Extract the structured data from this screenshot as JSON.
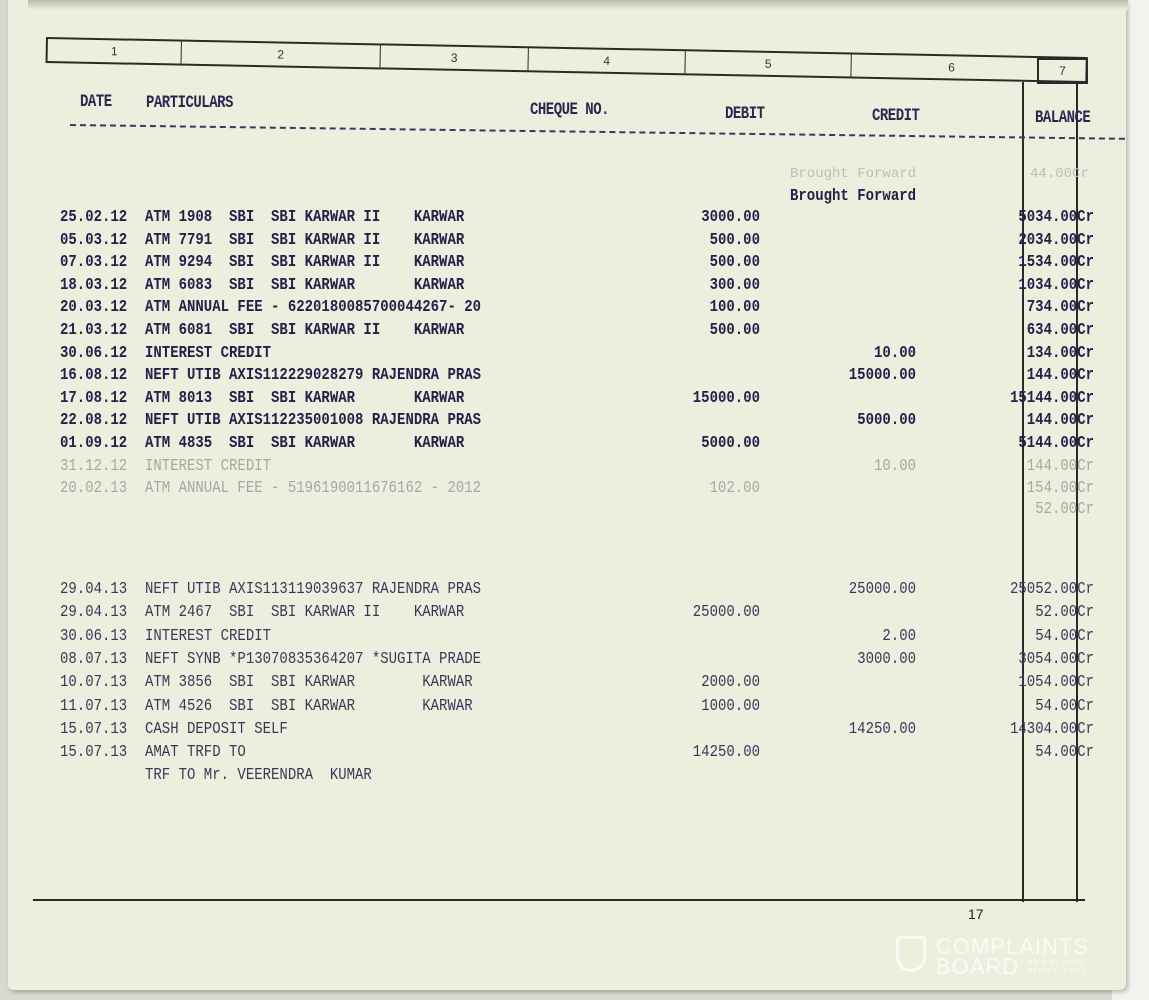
{
  "column_numbers": [
    "1",
    "2",
    "3",
    "4",
    "5",
    "6",
    "7"
  ],
  "headers": {
    "date": "DATE",
    "particulars": "PARTICULARS",
    "cheque": "CHEQUE NO.",
    "debit": "DEBIT",
    "credit": "CREDIT",
    "balance": "BALANCE"
  },
  "brought_forward": {
    "label": "Brought Forward",
    "ghost_label": "Brought Forward",
    "ghost_balance": "44.00Cr"
  },
  "rows_2012": [
    {
      "date": "25.02.12",
      "particulars": "ATM 1908  SBI  SBI KARWAR II    KARWAR",
      "debit": "3000.00",
      "credit": "",
      "balance": "5034.00Cr"
    },
    {
      "date": "05.03.12",
      "particulars": "ATM 7791  SBI  SBI KARWAR II    KARWAR",
      "debit": "500.00",
      "credit": "",
      "balance": "2034.00Cr"
    },
    {
      "date": "07.03.12",
      "particulars": "ATM 9294  SBI  SBI KARWAR II    KARWAR",
      "debit": "500.00",
      "credit": "",
      "balance": "1534.00Cr"
    },
    {
      "date": "18.03.12",
      "particulars": "ATM 6083  SBI  SBI KARWAR       KARWAR",
      "debit": "300.00",
      "credit": "",
      "balance": "1034.00Cr"
    },
    {
      "date": "20.03.12",
      "particulars": "ATM ANNUAL FEE - 6220180085700044267- 20",
      "debit": "100.00",
      "credit": "",
      "balance": "734.00Cr"
    },
    {
      "date": "21.03.12",
      "particulars": "ATM 6081  SBI  SBI KARWAR II    KARWAR",
      "debit": "500.00",
      "credit": "",
      "balance": "634.00Cr"
    },
    {
      "date": "30.06.12",
      "particulars": "INTEREST CREDIT",
      "debit": "",
      "credit": "10.00",
      "balance": "134.00Cr"
    },
    {
      "date": "16.08.12",
      "particulars": "NEFT UTIB AXIS112229028279 RAJENDRA PRAS",
      "debit": "",
      "credit": "15000.00",
      "balance": "144.00Cr"
    },
    {
      "date": "17.08.12",
      "particulars": "ATM 8013  SBI  SBI KARWAR       KARWAR",
      "debit": "15000.00",
      "credit": "",
      "balance": "15144.00Cr"
    },
    {
      "date": "22.08.12",
      "particulars": "NEFT UTIB AXIS112235001008 RAJENDRA PRAS",
      "debit": "",
      "credit": "5000.00",
      "balance": "144.00Cr"
    },
    {
      "date": "01.09.12",
      "particulars": "ATM 4835  SBI  SBI KARWAR       KARWAR",
      "debit": "5000.00",
      "credit": "",
      "balance": "5144.00Cr"
    },
    {
      "date": "31.12.12",
      "particulars": "INTEREST CREDIT",
      "debit": "",
      "credit": "10.00",
      "balance": "144.00Cr",
      "faded": true
    },
    {
      "date": "20.02.13",
      "particulars": "ATM ANNUAL FEE - 5196190011676162 - 2012",
      "debit": "102.00",
      "credit": "",
      "balance": "154.00Cr",
      "faded": true
    }
  ],
  "final_balance_2012": "52.00Cr",
  "rows_2013": [
    {
      "date": "29.04.13",
      "particulars": "NEFT UTIB AXIS113119039637 RAJENDRA PRAS",
      "debit": "",
      "credit": "25000.00",
      "balance": "25052.00Cr"
    },
    {
      "date": "29.04.13",
      "particulars": "ATM 2467  SBI  SBI KARWAR II    KARWAR",
      "debit": "25000.00",
      "credit": "",
      "balance": "52.00Cr"
    },
    {
      "date": "30.06.13",
      "particulars": "INTEREST CREDIT",
      "debit": "",
      "credit": "2.00",
      "balance": "54.00Cr"
    },
    {
      "date": "08.07.13",
      "particulars": "NEFT SYNB *P13070835364207 *SUGITA PRADE",
      "debit": "",
      "credit": "3000.00",
      "balance": "3054.00Cr"
    },
    {
      "date": "10.07.13",
      "particulars": "ATM 3856  SBI  SBI KARWAR        KARWAR",
      "debit": "2000.00",
      "credit": "",
      "balance": "1054.00Cr"
    },
    {
      "date": "11.07.13",
      "particulars": "ATM 4526  SBI  SBI KARWAR        KARWAR",
      "debit": "1000.00",
      "credit": "",
      "balance": "54.00Cr"
    },
    {
      "date": "15.07.13",
      "particulars": "CASH DEPOSIT SELF",
      "debit": "",
      "credit": "14250.00",
      "balance": "14304.00Cr"
    },
    {
      "date": "15.07.13",
      "particulars": "AMAT TRFD TO",
      "debit": "14250.00",
      "credit": "",
      "balance": "54.00Cr"
    },
    {
      "date": "",
      "particulars": "TRF TO Mr. VEERENDRA  KUMAR",
      "debit": "",
      "credit": "",
      "balance": ""
    }
  ],
  "page_number": "17",
  "watermark": {
    "line1": "COMPLAINTS",
    "line2": "BOARD",
    "tagline": "RESOLVING SINCE 2004"
  }
}
